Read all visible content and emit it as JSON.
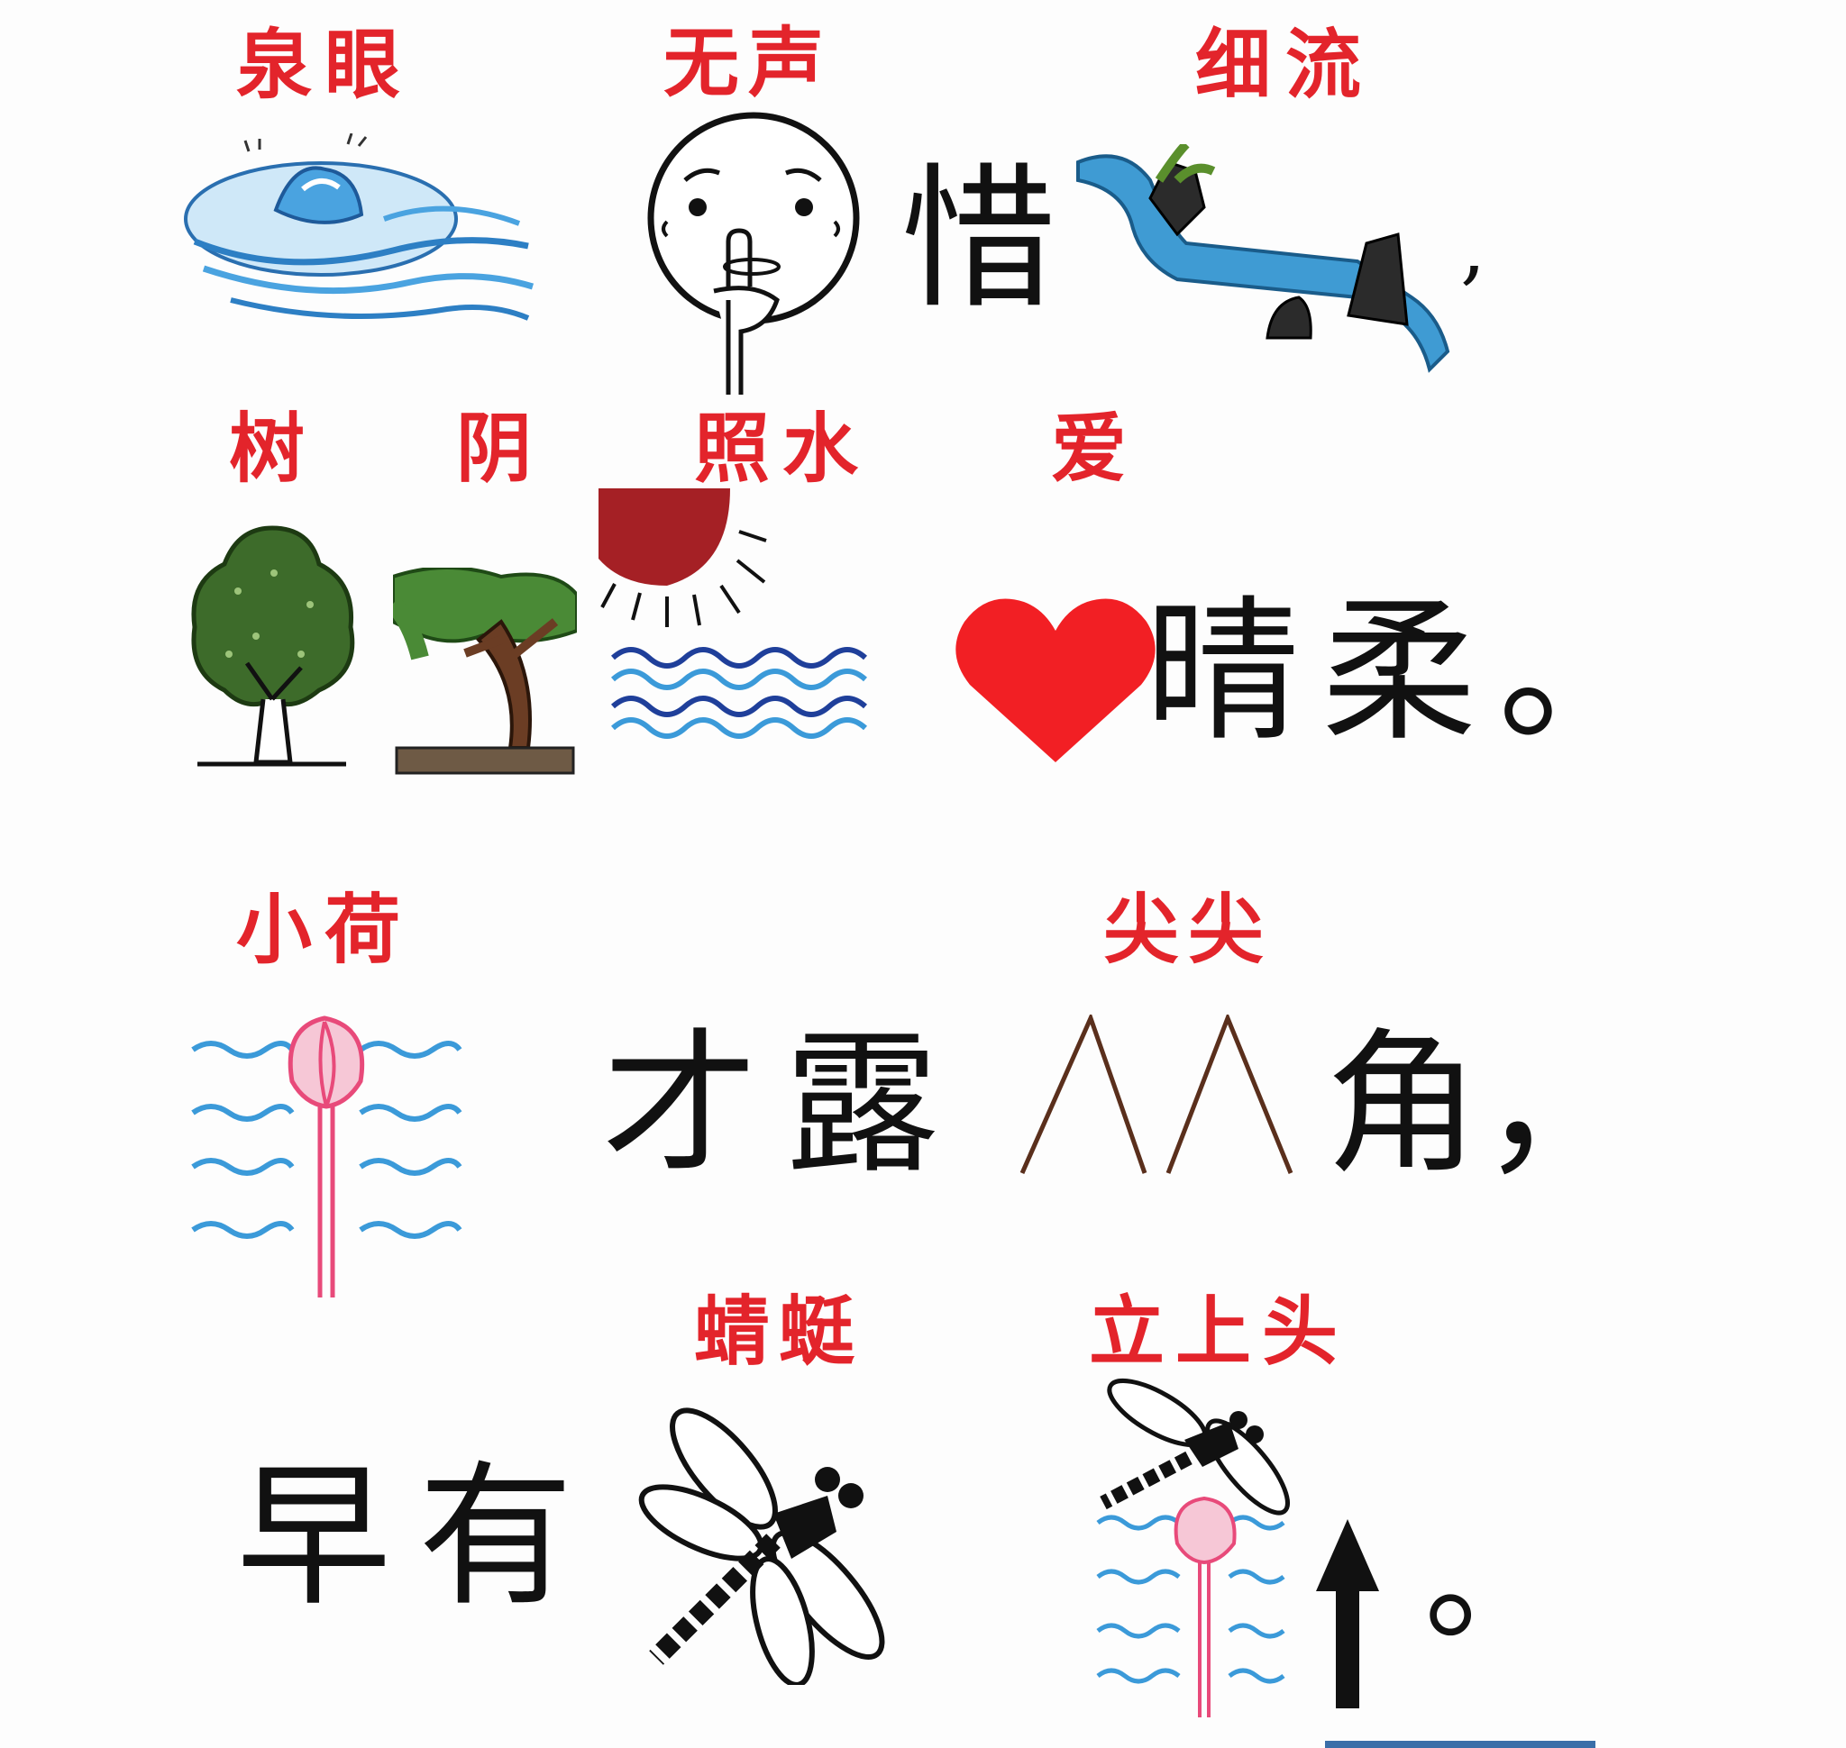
{
  "colors": {
    "pinyin_red": "#e3242b",
    "text_black": "#111111",
    "water_blue": "#3b9ad9",
    "leaf_green": "#3d6b2a",
    "lotus_pink": "#e84a7a",
    "sun_red": "#a52025",
    "heart_red": "#f21f24"
  },
  "line1": {
    "pinyin1": "泉眼",
    "pinyin2": "无声",
    "pinyin3": "细流",
    "text1": "惜",
    "icons": [
      "spring-water-icon",
      "hush-face-icon",
      "stream-icon"
    ]
  },
  "line2": {
    "pinyin1a": "树",
    "pinyin1b": "阴",
    "pinyin2": "照水",
    "pinyin3": "爱",
    "text1": "晴柔。",
    "icons": [
      "tree-icon",
      "shade-tree-icon",
      "sun-water-icon",
      "heart-icon"
    ]
  },
  "line3": {
    "pinyin1": "小荷",
    "pinyin2": "尖尖",
    "text1": "才露",
    "text2": "角，",
    "icons": [
      "lotus-bud-icon",
      "pointed-peaks-icon"
    ]
  },
  "line4": {
    "pinyin1": "蜻蜓",
    "pinyin2": "立上头",
    "text1": "早有",
    "text2": "。",
    "icons": [
      "dragonfly-icon",
      "dragonfly-on-lotus-icon",
      "up-arrow-icon"
    ]
  }
}
